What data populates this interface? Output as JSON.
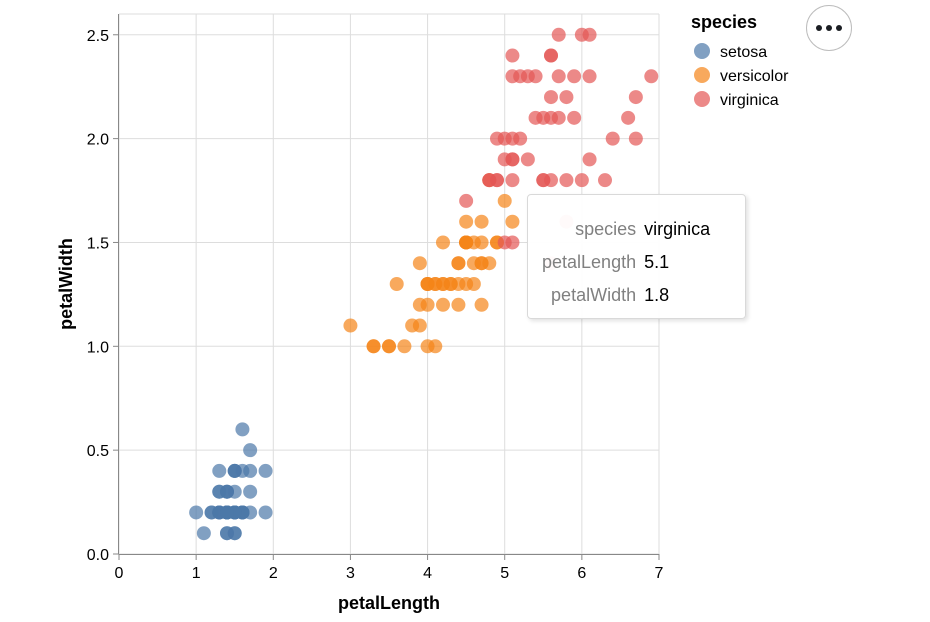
{
  "chart_data": {
    "type": "scatter",
    "xlabel": "petalLength",
    "ylabel": "petalWidth",
    "xlim": [
      0,
      7
    ],
    "ylim": [
      0,
      2.6
    ],
    "x_ticks": [
      "0",
      "1",
      "2",
      "3",
      "4",
      "5",
      "6",
      "7"
    ],
    "y_ticks": [
      "0.0",
      "0.5",
      "1.0",
      "1.5",
      "2.0",
      "2.5"
    ],
    "grid": true,
    "legend": {
      "title": "species",
      "position": "top-right",
      "entries": [
        {
          "label": "setosa",
          "color": "#4c78a8"
        },
        {
          "label": "versicolor",
          "color": "#f58518"
        },
        {
          "label": "virginica",
          "color": "#e45756"
        }
      ]
    },
    "series": [
      {
        "name": "setosa",
        "color": "#4c78a8",
        "points": [
          [
            1.4,
            0.2
          ],
          [
            1.4,
            0.2
          ],
          [
            1.3,
            0.2
          ],
          [
            1.5,
            0.2
          ],
          [
            1.4,
            0.2
          ],
          [
            1.7,
            0.4
          ],
          [
            1.4,
            0.3
          ],
          [
            1.5,
            0.2
          ],
          [
            1.4,
            0.2
          ],
          [
            1.5,
            0.1
          ],
          [
            1.5,
            0.2
          ],
          [
            1.6,
            0.2
          ],
          [
            1.4,
            0.1
          ],
          [
            1.1,
            0.1
          ],
          [
            1.2,
            0.2
          ],
          [
            1.5,
            0.4
          ],
          [
            1.3,
            0.4
          ],
          [
            1.4,
            0.3
          ],
          [
            1.7,
            0.3
          ],
          [
            1.5,
            0.3
          ],
          [
            1.7,
            0.2
          ],
          [
            1.5,
            0.4
          ],
          [
            1.0,
            0.2
          ],
          [
            1.7,
            0.5
          ],
          [
            1.9,
            0.2
          ],
          [
            1.6,
            0.2
          ],
          [
            1.6,
            0.4
          ],
          [
            1.5,
            0.2
          ],
          [
            1.4,
            0.2
          ],
          [
            1.6,
            0.2
          ],
          [
            1.6,
            0.2
          ],
          [
            1.5,
            0.4
          ],
          [
            1.5,
            0.1
          ],
          [
            1.4,
            0.2
          ],
          [
            1.5,
            0.2
          ],
          [
            1.2,
            0.2
          ],
          [
            1.3,
            0.2
          ],
          [
            1.4,
            0.1
          ],
          [
            1.3,
            0.2
          ],
          [
            1.5,
            0.2
          ],
          [
            1.3,
            0.3
          ],
          [
            1.3,
            0.3
          ],
          [
            1.3,
            0.2
          ],
          [
            1.6,
            0.6
          ],
          [
            1.9,
            0.4
          ],
          [
            1.4,
            0.3
          ],
          [
            1.6,
            0.2
          ],
          [
            1.4,
            0.2
          ],
          [
            1.5,
            0.2
          ],
          [
            1.4,
            0.2
          ]
        ]
      },
      {
        "name": "versicolor",
        "color": "#f58518",
        "points": [
          [
            4.7,
            1.4
          ],
          [
            4.5,
            1.5
          ],
          [
            4.9,
            1.5
          ],
          [
            4.0,
            1.3
          ],
          [
            4.6,
            1.5
          ],
          [
            4.5,
            1.3
          ],
          [
            4.7,
            1.6
          ],
          [
            3.3,
            1.0
          ],
          [
            4.6,
            1.3
          ],
          [
            3.9,
            1.4
          ],
          [
            3.5,
            1.0
          ],
          [
            4.2,
            1.5
          ],
          [
            4.0,
            1.0
          ],
          [
            4.7,
            1.4
          ],
          [
            3.6,
            1.3
          ],
          [
            4.4,
            1.4
          ],
          [
            4.5,
            1.5
          ],
          [
            4.1,
            1.0
          ],
          [
            4.5,
            1.5
          ],
          [
            3.9,
            1.1
          ],
          [
            4.8,
            1.8
          ],
          [
            4.0,
            1.3
          ],
          [
            4.9,
            1.5
          ],
          [
            4.7,
            1.2
          ],
          [
            4.3,
            1.3
          ],
          [
            4.4,
            1.4
          ],
          [
            4.8,
            1.4
          ],
          [
            5.0,
            1.7
          ],
          [
            4.5,
            1.5
          ],
          [
            3.5,
            1.0
          ],
          [
            3.8,
            1.1
          ],
          [
            3.7,
            1.0
          ],
          [
            3.9,
            1.2
          ],
          [
            5.1,
            1.6
          ],
          [
            4.5,
            1.5
          ],
          [
            4.5,
            1.6
          ],
          [
            4.7,
            1.5
          ],
          [
            4.4,
            1.3
          ],
          [
            4.1,
            1.3
          ],
          [
            4.0,
            1.3
          ],
          [
            4.4,
            1.2
          ],
          [
            4.6,
            1.4
          ],
          [
            4.0,
            1.2
          ],
          [
            3.3,
            1.0
          ],
          [
            4.2,
            1.3
          ],
          [
            4.2,
            1.2
          ],
          [
            4.2,
            1.3
          ],
          [
            4.3,
            1.3
          ],
          [
            3.0,
            1.1
          ],
          [
            4.1,
            1.3
          ]
        ]
      },
      {
        "name": "virginica",
        "color": "#e45756",
        "points": [
          [
            6.0,
            2.5
          ],
          [
            5.1,
            1.9
          ],
          [
            5.9,
            2.1
          ],
          [
            5.6,
            1.8
          ],
          [
            5.8,
            2.2
          ],
          [
            6.6,
            2.1
          ],
          [
            4.5,
            1.7
          ],
          [
            6.3,
            1.8
          ],
          [
            5.8,
            1.8
          ],
          [
            6.1,
            2.5
          ],
          [
            5.1,
            2.0
          ],
          [
            5.3,
            1.9
          ],
          [
            5.5,
            2.1
          ],
          [
            5.0,
            2.0
          ],
          [
            5.1,
            2.4
          ],
          [
            5.3,
            2.3
          ],
          [
            5.5,
            1.8
          ],
          [
            6.7,
            2.2
          ],
          [
            6.9,
            2.3
          ],
          [
            5.0,
            1.5
          ],
          [
            5.7,
            2.3
          ],
          [
            4.9,
            2.0
          ],
          [
            6.7,
            2.0
          ],
          [
            4.9,
            1.8
          ],
          [
            5.7,
            2.1
          ],
          [
            6.0,
            1.8
          ],
          [
            4.8,
            1.8
          ],
          [
            4.9,
            1.8
          ],
          [
            5.6,
            2.1
          ],
          [
            5.8,
            1.6
          ],
          [
            6.1,
            1.9
          ],
          [
            6.4,
            2.0
          ],
          [
            5.6,
            2.2
          ],
          [
            5.1,
            1.5
          ],
          [
            5.6,
            1.4
          ],
          [
            6.1,
            2.3
          ],
          [
            5.6,
            2.4
          ],
          [
            5.5,
            1.8
          ],
          [
            4.8,
            1.8
          ],
          [
            5.4,
            2.1
          ],
          [
            5.6,
            2.4
          ],
          [
            5.1,
            2.3
          ],
          [
            5.1,
            1.9
          ],
          [
            5.9,
            2.3
          ],
          [
            5.7,
            2.5
          ],
          [
            5.2,
            2.3
          ],
          [
            5.0,
            1.9
          ],
          [
            5.2,
            2.0
          ],
          [
            5.4,
            2.3
          ],
          [
            5.1,
            1.8
          ]
        ]
      }
    ]
  },
  "tooltip": {
    "rows": [
      {
        "key": "species",
        "value": "virginica"
      },
      {
        "key": "petalLength",
        "value": "5.1"
      },
      {
        "key": "petalWidth",
        "value": "1.8"
      }
    ]
  },
  "menu": {
    "icon": "more-horizontal-icon"
  }
}
